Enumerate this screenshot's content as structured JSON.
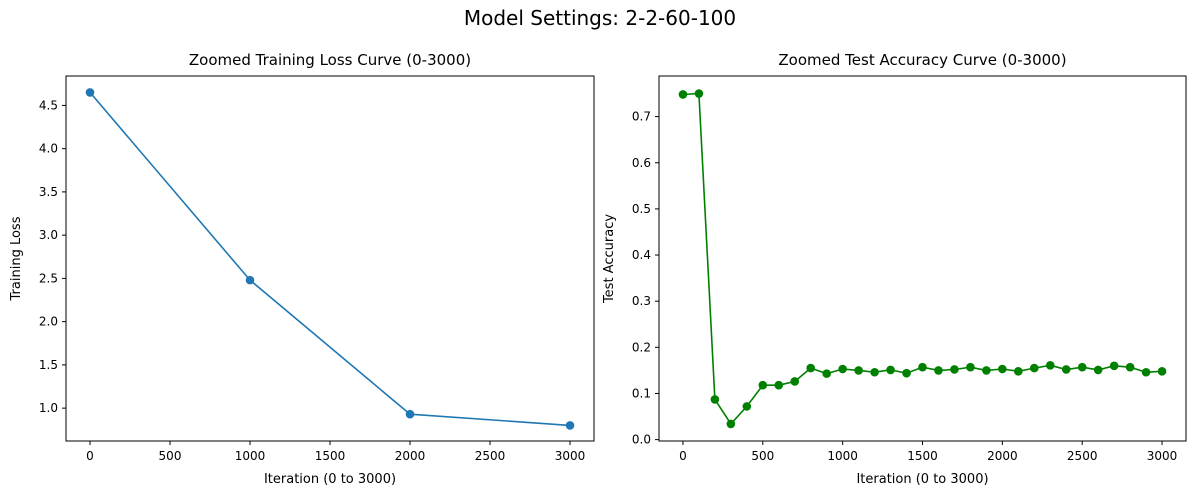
{
  "figure": {
    "suptitle": "Model Settings: 2-2-60-100"
  },
  "chart_data": [
    {
      "type": "line",
      "title": "Zoomed Training Loss Curve (0-3000)",
      "xlabel": "Iteration (0 to 3000)",
      "ylabel": "Training Loss",
      "xlim": [
        -150,
        3150
      ],
      "ylim": [
        0.62,
        4.84
      ],
      "xticks": [
        0,
        500,
        1000,
        1500,
        2000,
        2500,
        3000
      ],
      "yticks": [
        1.0,
        1.5,
        2.0,
        2.5,
        3.0,
        3.5,
        4.0,
        4.5
      ],
      "ytick_decimals": 1,
      "grid": false,
      "series": [
        {
          "x": [
            0,
            1000,
            2000,
            3000
          ],
          "y": [
            4.65,
            2.48,
            0.93,
            0.8
          ],
          "color": "#1f77b4",
          "marker": "circle"
        }
      ]
    },
    {
      "type": "line",
      "title": "Zoomed Test Accuracy Curve (0-3000)",
      "xlabel": "Iteration (0 to 3000)",
      "ylabel": "Test Accuracy",
      "xlim": [
        -150,
        3150
      ],
      "ylim": [
        -0.003,
        0.788
      ],
      "xticks": [
        0,
        500,
        1000,
        1500,
        2000,
        2500,
        3000
      ],
      "yticks": [
        0.0,
        0.1,
        0.2,
        0.3,
        0.4,
        0.5,
        0.6,
        0.7
      ],
      "ytick_decimals": 1,
      "grid": false,
      "series": [
        {
          "x": [
            0,
            100,
            200,
            300,
            400,
            500,
            600,
            700,
            800,
            900,
            1000,
            1100,
            1200,
            1300,
            1400,
            1500,
            1600,
            1700,
            1800,
            1900,
            2000,
            2100,
            2200,
            2300,
            2400,
            2500,
            2600,
            2700,
            2800,
            2900,
            3000
          ],
          "y": [
            0.748,
            0.75,
            0.087,
            0.034,
            0.072,
            0.118,
            0.118,
            0.126,
            0.155,
            0.143,
            0.153,
            0.15,
            0.146,
            0.151,
            0.144,
            0.157,
            0.15,
            0.152,
            0.157,
            0.15,
            0.153,
            0.148,
            0.155,
            0.161,
            0.152,
            0.157,
            0.151,
            0.16,
            0.157,
            0.146,
            0.148
          ],
          "color": "#008000",
          "marker": "circle"
        }
      ]
    }
  ]
}
